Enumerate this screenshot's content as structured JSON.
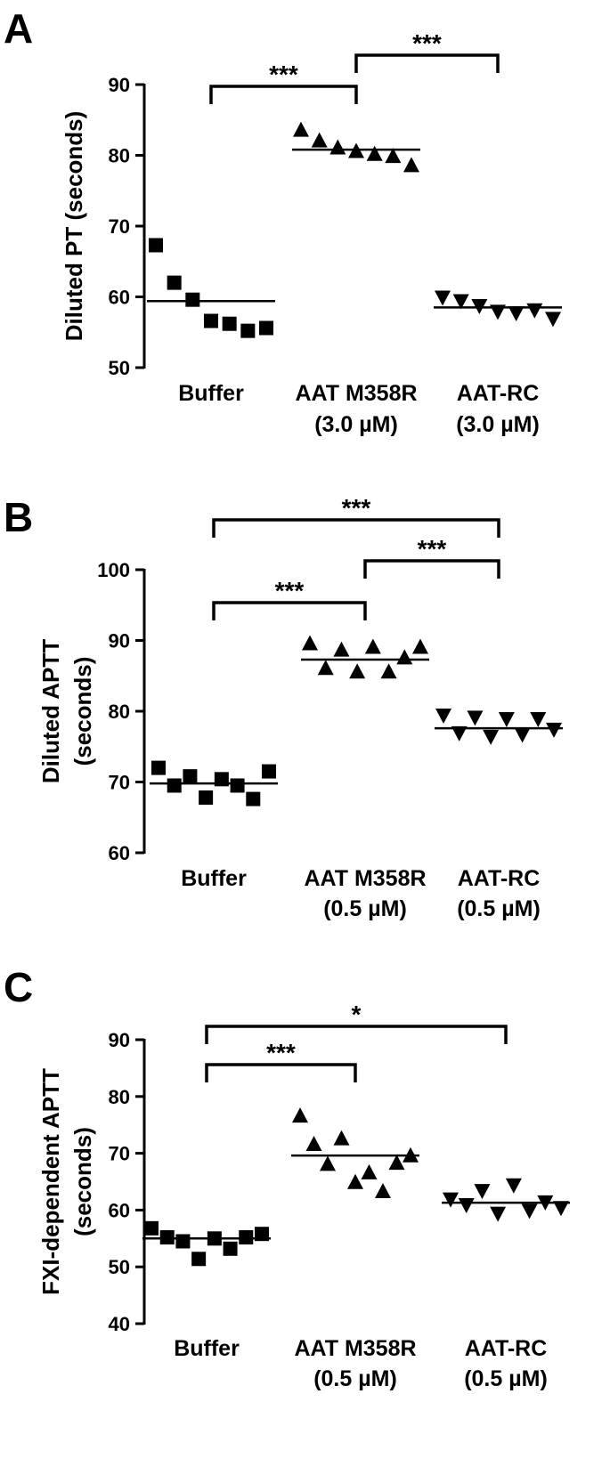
{
  "chart_data": [
    {
      "panel": "A",
      "type": "scatter",
      "ylabel": "Diluted PT (seconds)",
      "ylim": [
        50,
        90
      ],
      "yticks": [
        50,
        60,
        70,
        80,
        90
      ],
      "categories": [
        {
          "lines": [
            "Buffer"
          ],
          "marker": "square"
        },
        {
          "lines": [
            "AAT M358R",
            "(3.0 µM)"
          ],
          "marker": "triangle-up"
        },
        {
          "lines": [
            "AAT-RC",
            "(3.0 µM)"
          ],
          "marker": "triangle-down"
        }
      ],
      "series": [
        {
          "values": [
            67.3,
            62.0,
            59.6,
            56.6,
            56.2,
            55.2,
            55.6
          ],
          "mean": 59.4
        },
        {
          "values": [
            83.5,
            82.0,
            81.0,
            80.5,
            80.1,
            79.8,
            78.5
          ],
          "mean": 80.8
        },
        {
          "values": [
            60.0,
            59.5,
            58.8,
            58.0,
            57.8,
            58.2,
            57.0
          ],
          "mean": 58.5
        }
      ],
      "significance": [
        {
          "from": 0,
          "to": 1,
          "label": "***",
          "level": 0
        },
        {
          "from": 1,
          "to": 2,
          "label": "***",
          "level": 1
        }
      ]
    },
    {
      "panel": "B",
      "type": "scatter",
      "ylabel": [
        "Diluted APTT",
        "(seconds)"
      ],
      "ylim": [
        60,
        100
      ],
      "yticks": [
        60,
        70,
        80,
        90,
        100
      ],
      "categories": [
        {
          "lines": [
            "Buffer"
          ],
          "marker": "square"
        },
        {
          "lines": [
            "AAT M358R",
            "(0.5 µM)"
          ],
          "marker": "triangle-up"
        },
        {
          "lines": [
            "AAT-RC",
            "(0.5 µM)"
          ],
          "marker": "triangle-down"
        }
      ],
      "series": [
        {
          "values": [
            72.0,
            69.5,
            70.8,
            67.8,
            70.4,
            69.5,
            67.6,
            71.5
          ],
          "mean": 69.8
        },
        {
          "values": [
            89.5,
            86.0,
            88.6,
            85.5,
            89.0,
            85.5,
            87.5,
            89.0
          ],
          "mean": 87.3
        },
        {
          "values": [
            79.5,
            77.0,
            79.2,
            76.5,
            79.0,
            76.8,
            79.0,
            77.5
          ],
          "mean": 77.6
        }
      ],
      "significance": [
        {
          "from": 0,
          "to": 1,
          "label": "***",
          "level": 0
        },
        {
          "from": 1,
          "to": 2,
          "label": "***",
          "level": 1
        },
        {
          "from": 0,
          "to": 2,
          "label": "***",
          "level": 2
        }
      ]
    },
    {
      "panel": "C",
      "type": "scatter",
      "ylabel": [
        "FXI-dependent APTT",
        "(seconds)"
      ],
      "ylim": [
        40,
        90
      ],
      "yticks": [
        40,
        50,
        60,
        70,
        80,
        90
      ],
      "categories": [
        {
          "lines": [
            "Buffer"
          ],
          "marker": "square"
        },
        {
          "lines": [
            "AAT M358R",
            "(0.5 µM)"
          ],
          "marker": "triangle-up"
        },
        {
          "lines": [
            "AAT-RC",
            "(0.5 µM)"
          ],
          "marker": "triangle-down"
        }
      ],
      "series": [
        {
          "values": [
            56.8,
            55.2,
            54.5,
            51.4,
            55.0,
            53.2,
            55.2,
            55.8
          ],
          "mean": 55.0
        },
        {
          "values": [
            76.5,
            71.5,
            68.0,
            72.5,
            64.8,
            66.5,
            63.2,
            68.2,
            69.5
          ],
          "mean": 69.6
        },
        {
          "values": [
            62.0,
            61.0,
            63.5,
            59.5,
            64.5,
            60.0,
            61.5,
            60.5
          ],
          "mean": 61.3
        }
      ],
      "significance": [
        {
          "from": 0,
          "to": 1,
          "label": "***",
          "level": 0
        },
        {
          "from": 0,
          "to": 2,
          "label": "*",
          "level": 1
        }
      ]
    }
  ]
}
